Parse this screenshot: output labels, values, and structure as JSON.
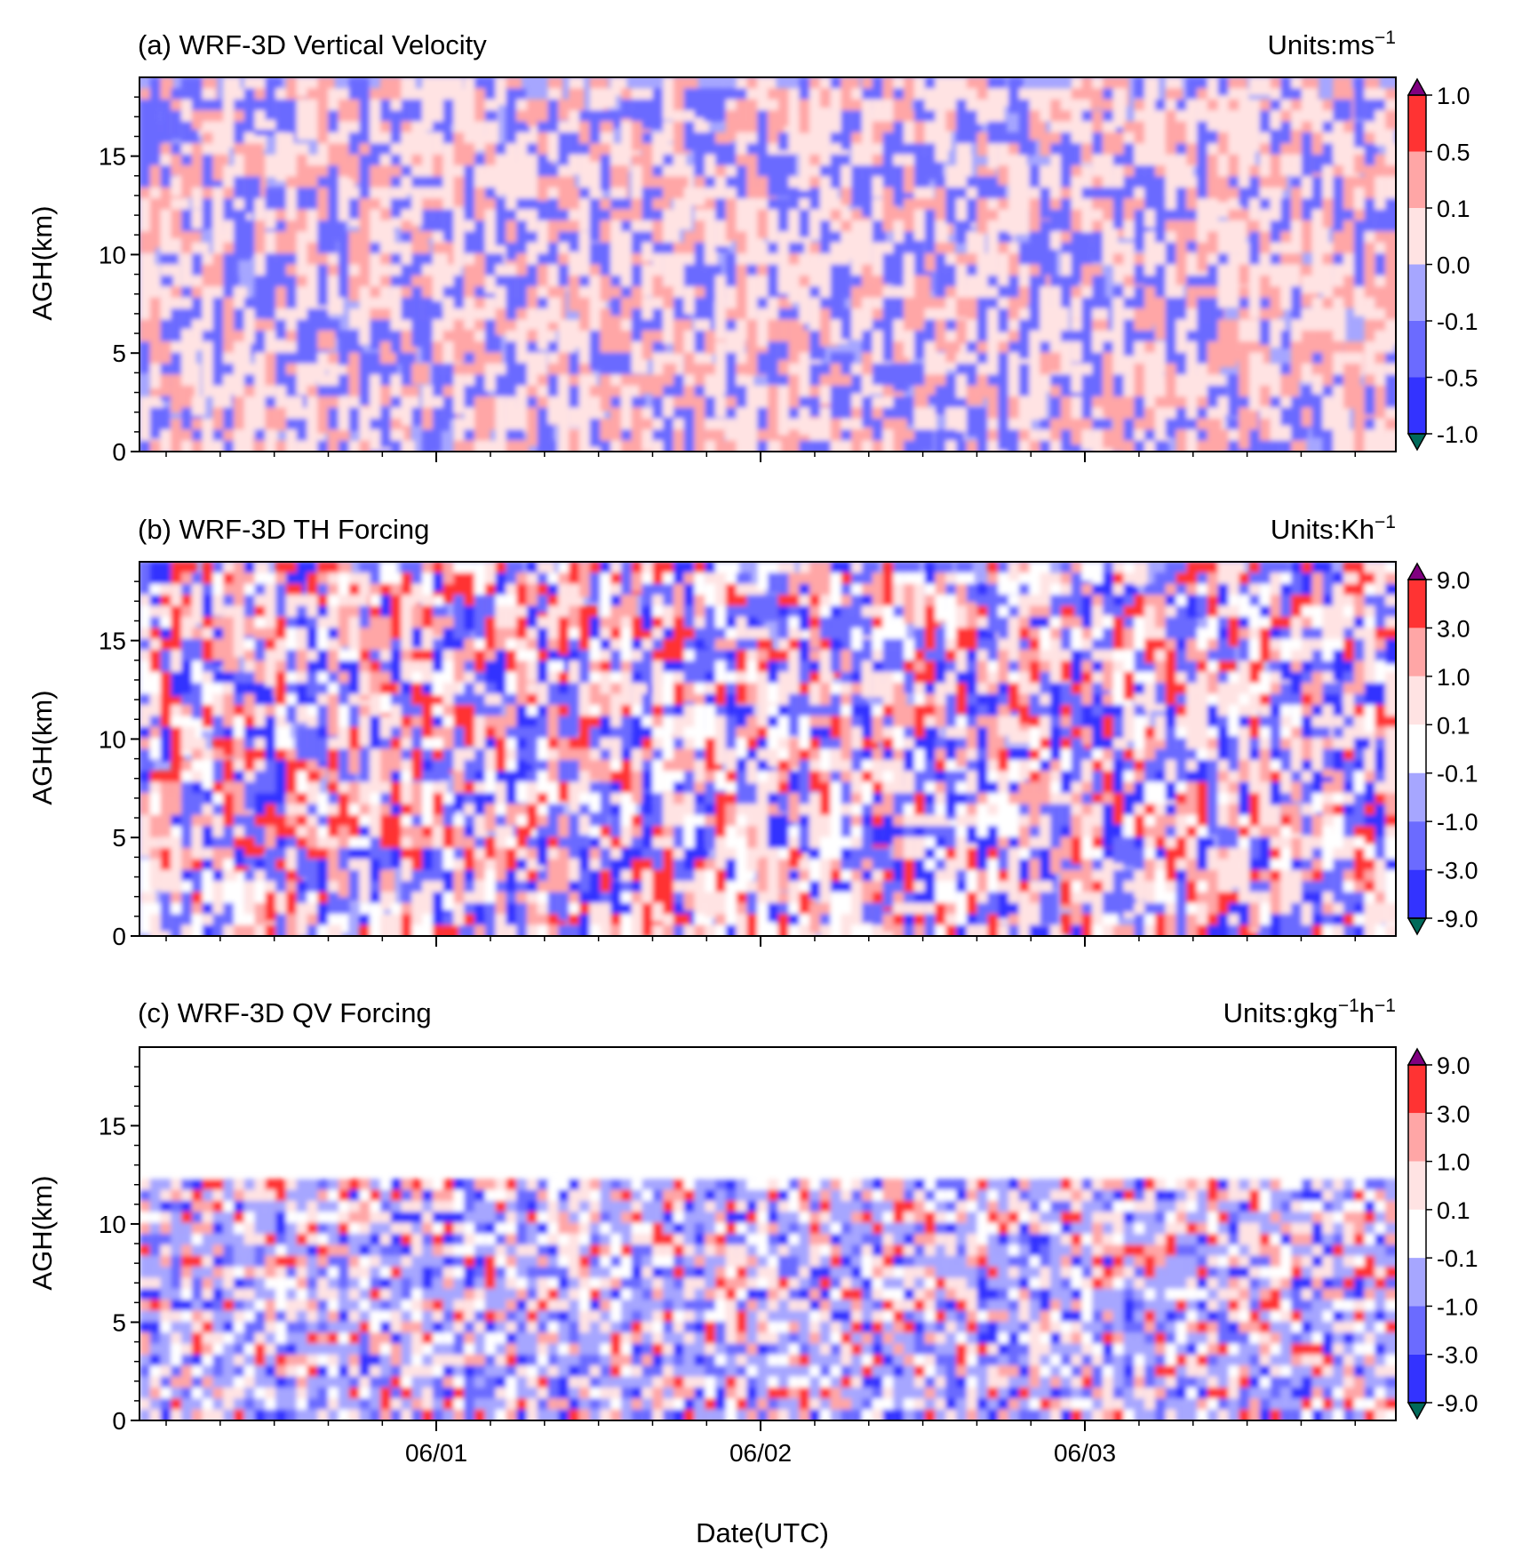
{
  "chart_data": [
    {
      "type": "heatmap",
      "title": "(a) WRF-3D Vertical Velocity",
      "units_label": "Units:ms",
      "units_sup": "−1",
      "ylabel": "AGH(km)",
      "xlabel": "",
      "ylim": [
        0,
        19
      ],
      "y_ticks": [
        "0",
        "5",
        "10",
        "15"
      ],
      "x_tick_labels": [],
      "colorbar_labels": [
        "1.0",
        "0.5",
        "0.1",
        "0.0",
        "-0.1",
        "-0.5",
        "-1.0"
      ],
      "colorbar_colors": [
        "#ff3333",
        "#ffa6a6",
        "#ffe3e3",
        "#a6a6ff",
        "#6b6bff",
        "#3333ff"
      ],
      "colorbar_extend_colors": [
        "#800080",
        "#006a5a"
      ],
      "fill_colors": [
        "#a6a6ff",
        "#ffe3e3",
        "#6b6bff",
        "#ffa6a6"
      ]
    },
    {
      "type": "heatmap",
      "title": "(b) WRF-3D TH Forcing",
      "units_label": "Units:Kh",
      "units_sup": "−1",
      "ylabel": "AGH(km)",
      "xlabel": "",
      "ylim": [
        0,
        19
      ],
      "y_ticks": [
        "0",
        "5",
        "10",
        "15"
      ],
      "x_tick_labels": [],
      "colorbar_labels": [
        "9.0",
        "3.0",
        "1.0",
        "0.1",
        "-0.1",
        "-1.0",
        "-3.0",
        "-9.0"
      ],
      "colorbar_colors": [
        "#ff3333",
        "#ffa6a6",
        "#ffe3e3",
        "#ffffff",
        "#a6a6ff",
        "#6b6bff",
        "#3333ff"
      ],
      "colorbar_extend_colors": [
        "#800080",
        "#006a5a"
      ],
      "fill_colors": [
        "#a6a6ff",
        "#ffe3e3",
        "#6b6bff",
        "#ffa6a6",
        "#ff3333",
        "#ffffff",
        "#3333ff"
      ]
    },
    {
      "type": "heatmap",
      "title": "(c) WRF-3D QV Forcing",
      "units_label": "Units:gkg",
      "units_sup": "−1",
      "units_label2": "h",
      "units_sup2": "−1",
      "ylabel": "AGH(km)",
      "xlabel": "Date(UTC)",
      "ylim": [
        0,
        19
      ],
      "y_ticks": [
        "0",
        "5",
        "10",
        "15"
      ],
      "x_tick_labels": [
        "06/01",
        "06/02",
        "06/03"
      ],
      "colorbar_labels": [
        "9.0",
        "3.0",
        "1.0",
        "0.1",
        "-0.1",
        "-1.0",
        "-3.0",
        "-9.0"
      ],
      "colorbar_colors": [
        "#ff3333",
        "#ffa6a6",
        "#ffe3e3",
        "#ffffff",
        "#a6a6ff",
        "#6b6bff",
        "#3333ff"
      ],
      "colorbar_extend_colors": [
        "#800080",
        "#006a5a"
      ],
      "fill_colors": [
        "#a6a6ff",
        "#ffe3e3",
        "#6b6bff",
        "#ffffff",
        "#ffa6a6",
        "#ff3333",
        "#3333ff"
      ]
    }
  ]
}
